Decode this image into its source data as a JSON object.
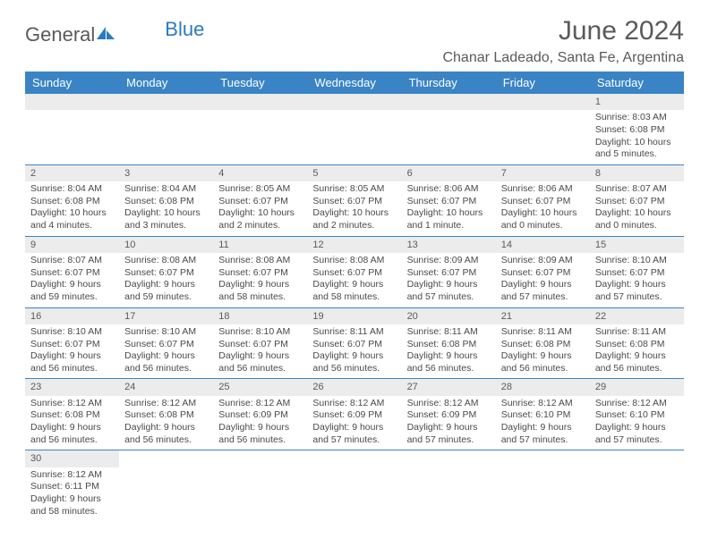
{
  "logo": {
    "text1": "General",
    "text2": "Blue"
  },
  "title": "June 2024",
  "location": "Chanar Ladeado, Santa Fe, Argentina",
  "header_bg": "#3a84c5",
  "days_of_week": [
    "Sunday",
    "Monday",
    "Tuesday",
    "Wednesday",
    "Thursday",
    "Friday",
    "Saturday"
  ],
  "weeks": [
    [
      null,
      null,
      null,
      null,
      null,
      null,
      {
        "n": "1",
        "sr": "8:03 AM",
        "ss": "6:08 PM",
        "dl": "10 hours and 5 minutes."
      }
    ],
    [
      {
        "n": "2",
        "sr": "8:04 AM",
        "ss": "6:08 PM",
        "dl": "10 hours and 4 minutes."
      },
      {
        "n": "3",
        "sr": "8:04 AM",
        "ss": "6:08 PM",
        "dl": "10 hours and 3 minutes."
      },
      {
        "n": "4",
        "sr": "8:05 AM",
        "ss": "6:07 PM",
        "dl": "10 hours and 2 minutes."
      },
      {
        "n": "5",
        "sr": "8:05 AM",
        "ss": "6:07 PM",
        "dl": "10 hours and 2 minutes."
      },
      {
        "n": "6",
        "sr": "8:06 AM",
        "ss": "6:07 PM",
        "dl": "10 hours and 1 minute."
      },
      {
        "n": "7",
        "sr": "8:06 AM",
        "ss": "6:07 PM",
        "dl": "10 hours and 0 minutes."
      },
      {
        "n": "8",
        "sr": "8:07 AM",
        "ss": "6:07 PM",
        "dl": "10 hours and 0 minutes."
      }
    ],
    [
      {
        "n": "9",
        "sr": "8:07 AM",
        "ss": "6:07 PM",
        "dl": "9 hours and 59 minutes."
      },
      {
        "n": "10",
        "sr": "8:08 AM",
        "ss": "6:07 PM",
        "dl": "9 hours and 59 minutes."
      },
      {
        "n": "11",
        "sr": "8:08 AM",
        "ss": "6:07 PM",
        "dl": "9 hours and 58 minutes."
      },
      {
        "n": "12",
        "sr": "8:08 AM",
        "ss": "6:07 PM",
        "dl": "9 hours and 58 minutes."
      },
      {
        "n": "13",
        "sr": "8:09 AM",
        "ss": "6:07 PM",
        "dl": "9 hours and 57 minutes."
      },
      {
        "n": "14",
        "sr": "8:09 AM",
        "ss": "6:07 PM",
        "dl": "9 hours and 57 minutes."
      },
      {
        "n": "15",
        "sr": "8:10 AM",
        "ss": "6:07 PM",
        "dl": "9 hours and 57 minutes."
      }
    ],
    [
      {
        "n": "16",
        "sr": "8:10 AM",
        "ss": "6:07 PM",
        "dl": "9 hours and 56 minutes."
      },
      {
        "n": "17",
        "sr": "8:10 AM",
        "ss": "6:07 PM",
        "dl": "9 hours and 56 minutes."
      },
      {
        "n": "18",
        "sr": "8:10 AM",
        "ss": "6:07 PM",
        "dl": "9 hours and 56 minutes."
      },
      {
        "n": "19",
        "sr": "8:11 AM",
        "ss": "6:07 PM",
        "dl": "9 hours and 56 minutes."
      },
      {
        "n": "20",
        "sr": "8:11 AM",
        "ss": "6:08 PM",
        "dl": "9 hours and 56 minutes."
      },
      {
        "n": "21",
        "sr": "8:11 AM",
        "ss": "6:08 PM",
        "dl": "9 hours and 56 minutes."
      },
      {
        "n": "22",
        "sr": "8:11 AM",
        "ss": "6:08 PM",
        "dl": "9 hours and 56 minutes."
      }
    ],
    [
      {
        "n": "23",
        "sr": "8:12 AM",
        "ss": "6:08 PM",
        "dl": "9 hours and 56 minutes."
      },
      {
        "n": "24",
        "sr": "8:12 AM",
        "ss": "6:08 PM",
        "dl": "9 hours and 56 minutes."
      },
      {
        "n": "25",
        "sr": "8:12 AM",
        "ss": "6:09 PM",
        "dl": "9 hours and 56 minutes."
      },
      {
        "n": "26",
        "sr": "8:12 AM",
        "ss": "6:09 PM",
        "dl": "9 hours and 57 minutes."
      },
      {
        "n": "27",
        "sr": "8:12 AM",
        "ss": "6:09 PM",
        "dl": "9 hours and 57 minutes."
      },
      {
        "n": "28",
        "sr": "8:12 AM",
        "ss": "6:10 PM",
        "dl": "9 hours and 57 minutes."
      },
      {
        "n": "29",
        "sr": "8:12 AM",
        "ss": "6:10 PM",
        "dl": "9 hours and 57 minutes."
      }
    ],
    [
      {
        "n": "30",
        "sr": "8:12 AM",
        "ss": "6:11 PM",
        "dl": "9 hours and 58 minutes."
      },
      null,
      null,
      null,
      null,
      null,
      null
    ]
  ],
  "labels": {
    "sunrise": "Sunrise:",
    "sunset": "Sunset:",
    "daylight": "Daylight:"
  }
}
